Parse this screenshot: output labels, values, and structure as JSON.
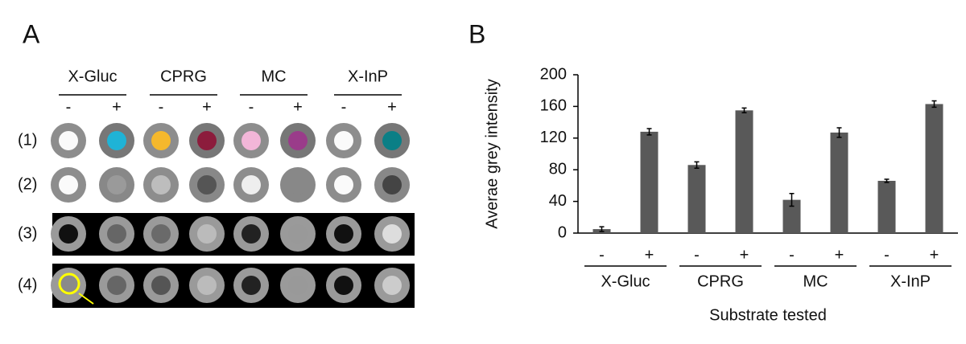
{
  "panel_a": {
    "label": "A",
    "groups": [
      "X-Gluc",
      "CPRG",
      "MC",
      "X-InP"
    ],
    "signs": [
      "-",
      "+"
    ],
    "rows": [
      "(1)",
      "(2)",
      "(3)",
      "(4)"
    ]
  },
  "chart_data": {
    "type": "bar",
    "panel_label": "B",
    "ylabel": "Averae grey intensity",
    "xlabel": "Substrate tested",
    "groups": [
      "X-Gluc",
      "CPRG",
      "MC",
      "X-InP"
    ],
    "categories": [
      "-",
      "+",
      "-",
      "+",
      "-",
      "+",
      "-",
      "+"
    ],
    "values": [
      5,
      128,
      86,
      155,
      42,
      127,
      66,
      163
    ],
    "errors": [
      3,
      4,
      4,
      3,
      8,
      6,
      2,
      4
    ],
    "color": "#595959",
    "ylim": [
      0,
      200
    ],
    "yticks": [
      0,
      40,
      80,
      120,
      160,
      200
    ],
    "grid": false
  }
}
